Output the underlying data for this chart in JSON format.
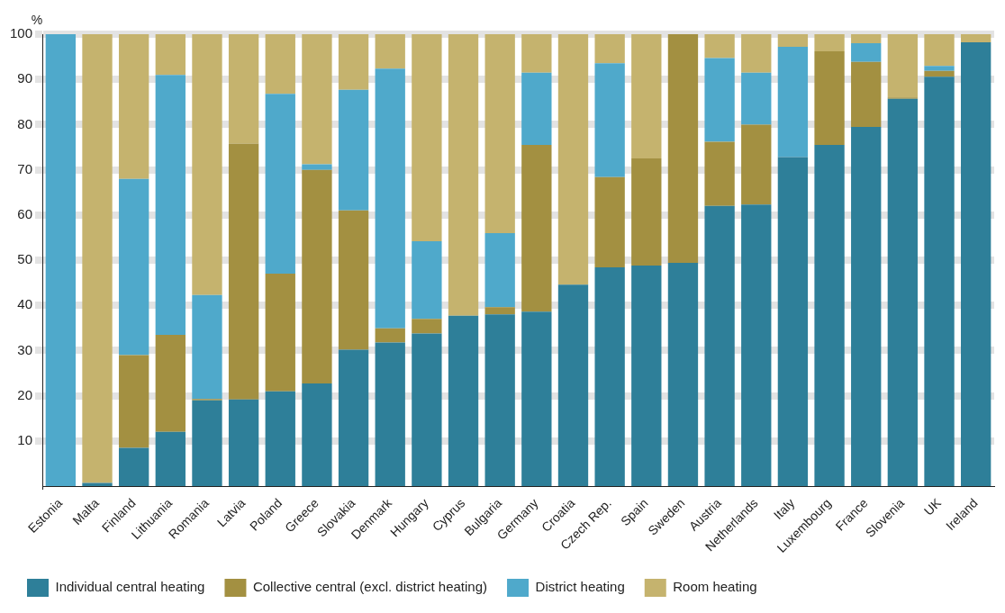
{
  "chart_data": {
    "type": "bar",
    "stacked": true,
    "ylabel": "%",
    "categories": [
      "Estonia",
      "Malta",
      "Finland",
      "Lithuania",
      "Romania",
      "Latvia",
      "Poland",
      "Greece",
      "Slovakia",
      "Denmark",
      "Hungary",
      "Cyprus",
      "Bulgaria",
      "Germany",
      "Croatia",
      "Czech Rep.",
      "Spain",
      "Sweden",
      "Austria",
      "Netherlands",
      "Italy",
      "Luxembourg",
      "France",
      "Slovenia",
      "UK",
      "Ireland"
    ],
    "series": [
      {
        "name": "Individual central heating",
        "color": "#2e7f99",
        "values": [
          0,
          0.7,
          8.5,
          12,
          19,
          19.2,
          21,
          22.7,
          30.2,
          31.8,
          33.8,
          37.7,
          38,
          38.6,
          44.6,
          48.4,
          48.8,
          49.4,
          62,
          62.3,
          72.8,
          75.5,
          79.5,
          85.7,
          90.6,
          98.2
        ]
      },
      {
        "name": "Collective central (excl. district heating)",
        "color": "#a39041",
        "values": [
          0,
          0,
          20.5,
          21.5,
          0.3,
          56.6,
          26,
          47.3,
          30.8,
          3.1,
          3.2,
          0,
          1.6,
          36.9,
          0,
          20,
          23.7,
          50.6,
          14.2,
          17.7,
          0,
          20.7,
          14.4,
          0.3,
          1.3,
          0
        ]
      },
      {
        "name": "District heating",
        "color": "#4fa9cb",
        "values": [
          100,
          0,
          39,
          57.5,
          23,
          0,
          39.8,
          1.2,
          26.7,
          57.5,
          17.2,
          0,
          16.4,
          16,
          0,
          25.2,
          0,
          0,
          18.5,
          11.5,
          24.4,
          0,
          4.1,
          0,
          1.1,
          0
        ]
      },
      {
        "name": "Room heating",
        "color": "#c5b36e",
        "values": [
          0,
          99.3,
          32,
          9,
          57.7,
          24.2,
          13.2,
          28.8,
          12.3,
          7.6,
          45.8,
          62.3,
          44,
          8.5,
          55.4,
          6.4,
          27.5,
          0,
          5.3,
          8.5,
          2.8,
          3.8,
          2,
          14,
          7,
          1.8
        ]
      }
    ],
    "ylim": [
      0,
      100
    ],
    "yticks": [
      10,
      20,
      30,
      40,
      50,
      60,
      70,
      80,
      90,
      100
    ],
    "grid": "y",
    "legend": "bottom"
  }
}
